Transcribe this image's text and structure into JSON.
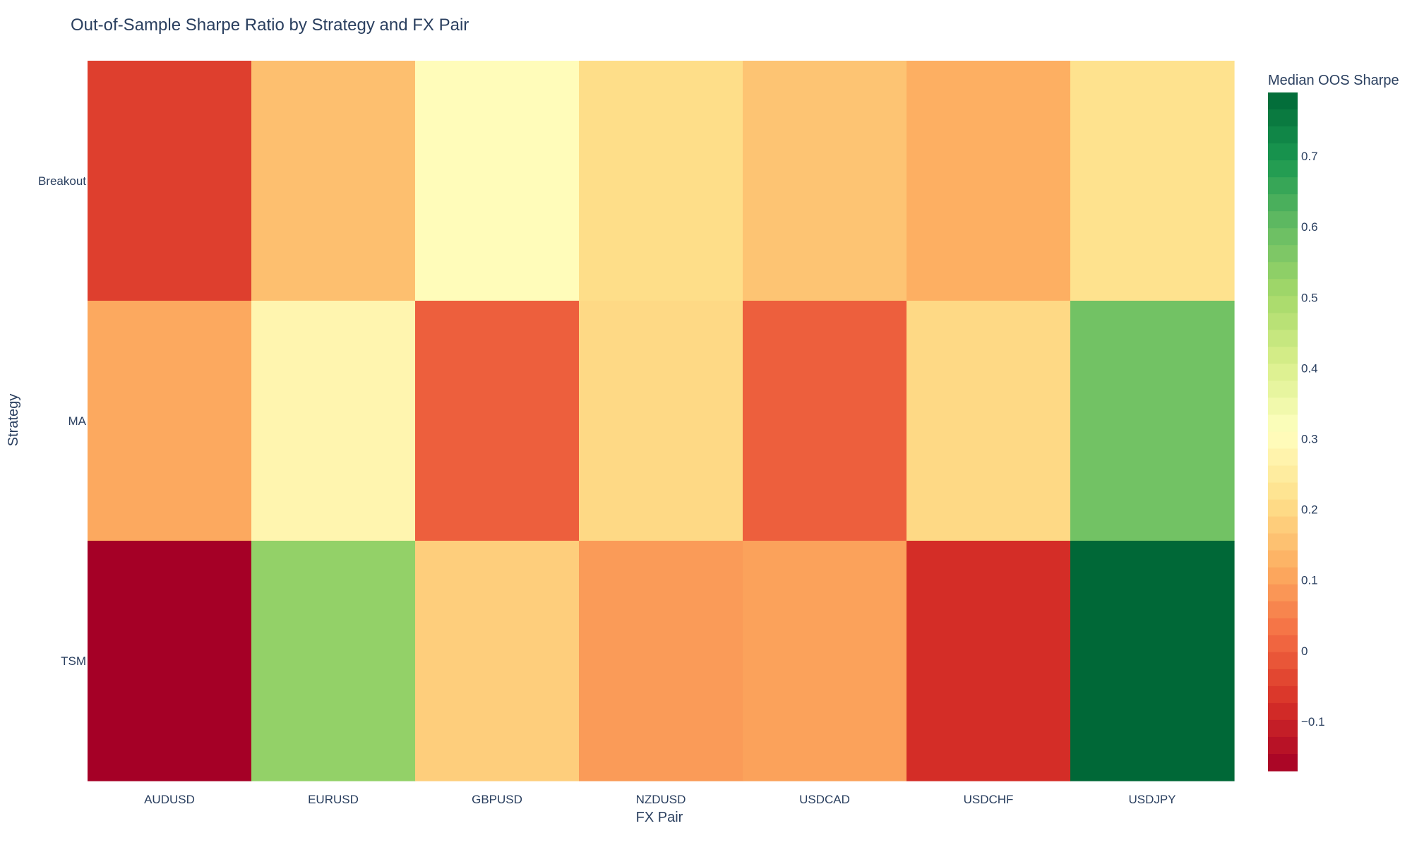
{
  "chart_data": {
    "type": "heatmap",
    "title": "Out-of-Sample Sharpe Ratio by Strategy and FX Pair",
    "xlabel": "FX Pair",
    "ylabel": "Strategy",
    "x": [
      "AUDUSD",
      "EURUSD",
      "GBPUSD",
      "NZDUSD",
      "USDCAD",
      "USDCHF",
      "USDJPY"
    ],
    "y": [
      "Breakout",
      "MA",
      "TSM"
    ],
    "z": [
      [
        -0.05,
        0.15,
        0.3,
        0.21,
        0.16,
        0.12,
        0.22
      ],
      [
        0.11,
        0.28,
        0.0,
        0.2,
        0.0,
        0.2,
        0.58
      ],
      [
        -0.17,
        0.53,
        0.18,
        0.09,
        0.1,
        -0.08,
        0.79
      ]
    ],
    "colorbar": {
      "title": "Median OOS Sharpe",
      "range": [
        -0.17,
        0.79
      ],
      "ticks": [
        -0.1,
        0,
        0.1,
        0.2,
        0.3,
        0.4,
        0.5,
        0.6,
        0.7
      ],
      "tick_labels": [
        "−0.1",
        "0",
        "0.1",
        "0.2",
        "0.3",
        "0.4",
        "0.5",
        "0.6",
        "0.7"
      ]
    },
    "colorscale": [
      "#a50026",
      "#d73027",
      "#f46d43",
      "#fdae61",
      "#fee08b",
      "#ffffbf",
      "#d9ef8b",
      "#a6d96a",
      "#66bd63",
      "#1a9850",
      "#006837"
    ]
  }
}
